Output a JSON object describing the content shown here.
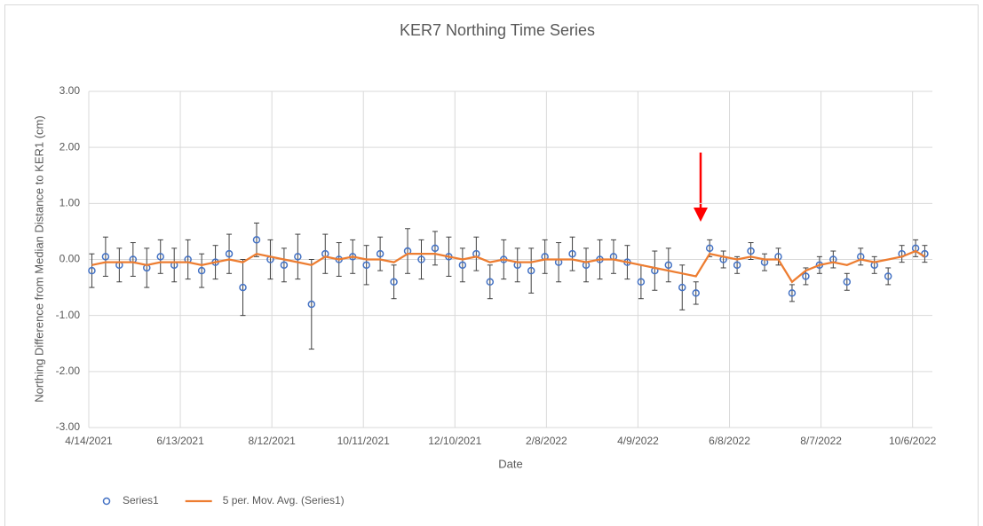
{
  "chart_data": {
    "type": "scatter",
    "title": "KER7 Northing Time Series",
    "x_label": "Date",
    "y_label": "Northing Difference from Median Distance to KER1 (cm)",
    "x": [
      "2021-04-16",
      "2021-04-25",
      "2021-05-04",
      "2021-05-13",
      "2021-05-22",
      "2021-05-31",
      "2021-06-09",
      "2021-06-18",
      "2021-06-27",
      "2021-07-06",
      "2021-07-15",
      "2021-07-24",
      "2021-08-02",
      "2021-08-11",
      "2021-08-20",
      "2021-08-29",
      "2021-09-07",
      "2021-09-16",
      "2021-09-25",
      "2021-10-04",
      "2021-10-13",
      "2021-10-22",
      "2021-10-31",
      "2021-11-09",
      "2021-11-18",
      "2021-11-27",
      "2021-12-06",
      "2021-12-15",
      "2021-12-24",
      "2022-01-02",
      "2022-01-11",
      "2022-01-20",
      "2022-01-29",
      "2022-02-07",
      "2022-02-16",
      "2022-02-25",
      "2022-03-06",
      "2022-03-15",
      "2022-03-24",
      "2022-04-02",
      "2022-04-11",
      "2022-04-20",
      "2022-04-29",
      "2022-05-08",
      "2022-05-17",
      "2022-05-26",
      "2022-06-04",
      "2022-06-13",
      "2022-06-22",
      "2022-07-01",
      "2022-07-10",
      "2022-07-19",
      "2022-07-28",
      "2022-08-06",
      "2022-08-15",
      "2022-08-24",
      "2022-09-02",
      "2022-09-11",
      "2022-09-20",
      "2022-09-29",
      "2022-10-08",
      "2022-10-14"
    ],
    "series": [
      {
        "name": "Series1",
        "kind": "scatter",
        "color": "#4472c4",
        "error_color": "#404040",
        "values": [
          -0.2,
          0.05,
          -0.1,
          0.0,
          -0.15,
          0.05,
          -0.1,
          0.0,
          -0.2,
          -0.05,
          0.1,
          -0.5,
          0.35,
          0.0,
          -0.1,
          0.05,
          -0.8,
          0.1,
          0.0,
          0.05,
          -0.1,
          0.1,
          -0.4,
          0.15,
          0.0,
          0.2,
          0.05,
          -0.1,
          0.1,
          -0.4,
          0.0,
          -0.1,
          -0.2,
          0.05,
          -0.05,
          0.1,
          -0.1,
          0.0,
          0.05,
          -0.05,
          -0.4,
          -0.2,
          -0.1,
          -0.5,
          -0.6,
          0.2,
          0.0,
          -0.1,
          0.15,
          -0.05,
          0.05,
          -0.6,
          -0.3,
          -0.1,
          0.0,
          -0.4,
          0.05,
          -0.1,
          -0.3,
          0.1,
          0.2,
          0.1
        ],
        "errors": [
          0.3,
          0.35,
          0.3,
          0.3,
          0.35,
          0.3,
          0.3,
          0.35,
          0.3,
          0.3,
          0.35,
          0.5,
          0.3,
          0.35,
          0.3,
          0.4,
          0.8,
          0.35,
          0.3,
          0.3,
          0.35,
          0.3,
          0.3,
          0.4,
          0.35,
          0.3,
          0.35,
          0.3,
          0.3,
          0.3,
          0.35,
          0.3,
          0.4,
          0.3,
          0.35,
          0.3,
          0.3,
          0.35,
          0.3,
          0.3,
          0.3,
          0.35,
          0.3,
          0.4,
          0.2,
          0.15,
          0.15,
          0.15,
          0.15,
          0.15,
          0.15,
          0.15,
          0.15,
          0.15,
          0.15,
          0.15,
          0.15,
          0.15,
          0.15,
          0.15,
          0.15,
          0.15
        ]
      },
      {
        "name": "5 per. Mov. Avg. (Series1)",
        "kind": "line",
        "color": "#ed7d31",
        "values": [
          -0.1,
          -0.05,
          -0.05,
          -0.05,
          -0.1,
          -0.05,
          -0.05,
          -0.05,
          -0.1,
          -0.05,
          0.0,
          -0.05,
          0.1,
          0.05,
          0.0,
          -0.05,
          -0.1,
          0.05,
          0.0,
          0.05,
          0.0,
          0.0,
          -0.05,
          0.1,
          0.1,
          0.1,
          0.05,
          0.0,
          0.05,
          -0.05,
          0.0,
          -0.05,
          -0.05,
          0.0,
          0.0,
          0.0,
          -0.05,
          0.0,
          0.0,
          -0.05,
          -0.1,
          -0.15,
          -0.2,
          -0.25,
          -0.3,
          0.1,
          0.05,
          0.0,
          0.05,
          0.0,
          0.0,
          -0.4,
          -0.2,
          -0.1,
          -0.05,
          -0.1,
          0.0,
          -0.05,
          0.0,
          0.05,
          0.15,
          0.05
        ]
      }
    ],
    "xlim": [
      "2021-04-14",
      "2022-10-19"
    ],
    "xticks": [
      {
        "value": "2021-04-14",
        "label": "4/14/2021"
      },
      {
        "value": "2021-06-13",
        "label": "6/13/2021"
      },
      {
        "value": "2021-08-12",
        "label": "8/12/2021"
      },
      {
        "value": "2021-10-11",
        "label": "10/11/2021"
      },
      {
        "value": "2021-12-10",
        "label": "12/10/2021"
      },
      {
        "value": "2022-02-08",
        "label": "2/8/2022"
      },
      {
        "value": "2022-04-09",
        "label": "4/9/2022"
      },
      {
        "value": "2022-06-08",
        "label": "6/8/2022"
      },
      {
        "value": "2022-08-07",
        "label": "8/7/2022"
      },
      {
        "value": "2022-10-06",
        "label": "10/6/2022"
      }
    ],
    "ylim": [
      -3,
      3
    ],
    "yticks": [
      {
        "value": -3,
        "label": "-3.00"
      },
      {
        "value": -2,
        "label": "-2.00"
      },
      {
        "value": -1,
        "label": "-1.00"
      },
      {
        "value": 0,
        "label": "0.00"
      },
      {
        "value": 1,
        "label": "1.00"
      },
      {
        "value": 2,
        "label": "2.00"
      },
      {
        "value": 3,
        "label": "3.00"
      }
    ],
    "grid": true,
    "legend": "bottom-left"
  }
}
